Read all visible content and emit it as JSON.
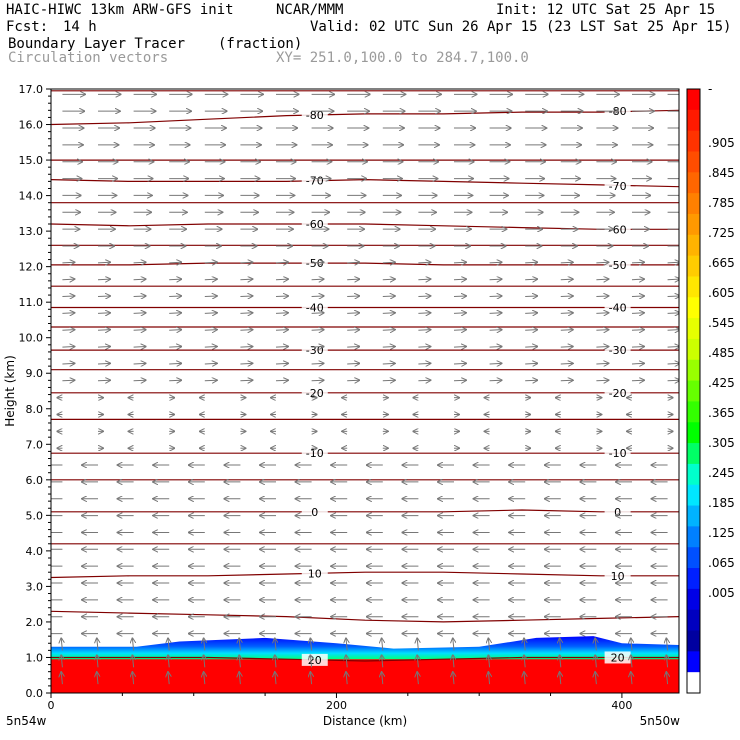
{
  "header": {
    "model": "HAIC-HIWC 13km ARW-GFS init",
    "org": "NCAR/MMM",
    "init": "Init: 12 UTC Sat 25 Apr 15",
    "fcst_label": "Fcst:",
    "fcst_value": "14 h",
    "valid": "Valid: 02 UTC Sun 26 Apr 15 (23 LST Sat 25 Apr 15)",
    "field_name": "Boundary Layer Tracer",
    "field_units": "(fraction)",
    "vectors_label": "Circulation vectors",
    "xy_range": "XY= 251.0,100.0 to 284.7,100.0"
  },
  "chart_data": {
    "type": "heatmap",
    "ylabel": "Height (km)",
    "xlabel": "Distance (km)",
    "xlim": [
      0,
      440
    ],
    "ylim": [
      0,
      17
    ],
    "y_ticks": [
      "0.0",
      "1.0",
      "2.0",
      "3.0",
      "4.0",
      "5.0",
      "6.0",
      "7.0",
      "8.0",
      "9.0",
      "10.0",
      "11.0",
      "12.0",
      "13.0",
      "14.0",
      "15.0",
      "16.0",
      "17.0"
    ],
    "y_tick_values": [
      0,
      1,
      2,
      3,
      4,
      5,
      6,
      7,
      8,
      9,
      10,
      11,
      12,
      13,
      14,
      15,
      16,
      17
    ],
    "x_ticks": [
      "0",
      "200",
      "400"
    ],
    "x_tick_values": [
      0,
      200,
      400
    ],
    "x_endpoint_labels": {
      "left": "5n54w",
      "right": "5n50w"
    },
    "temperature_contours": [
      {
        "label": "-80",
        "heights": [
          16.0,
          16.05,
          16.15,
          16.25,
          16.3,
          16.3,
          16.35,
          16.35,
          16.4
        ]
      },
      {
        "label": "-70",
        "heights": [
          14.45,
          14.4,
          14.4,
          14.4,
          14.45,
          14.4,
          14.35,
          14.3,
          14.25
        ]
      },
      {
        "label": "-60",
        "heights": [
          13.2,
          13.15,
          13.2,
          13.2,
          13.2,
          13.15,
          13.1,
          13.05,
          13.05
        ]
      },
      {
        "label": "-50",
        "heights": [
          12.05,
          12.05,
          12.1,
          12.1,
          12.1,
          12.05,
          12.05,
          12.05,
          12.05
        ]
      },
      {
        "label": "-40",
        "heights": [
          10.85,
          10.85,
          10.85,
          10.85,
          10.85,
          10.85,
          10.85,
          10.85,
          10.85
        ]
      },
      {
        "label": "-30",
        "heights": [
          9.65,
          9.65,
          9.65,
          9.65,
          9.65,
          9.65,
          9.65,
          9.65,
          9.65
        ]
      },
      {
        "label": "-20",
        "heights": [
          8.45,
          8.45,
          8.45,
          8.45,
          8.45,
          8.45,
          8.45,
          8.45,
          8.45
        ]
      },
      {
        "label": "-10",
        "heights": [
          6.75,
          6.75,
          6.75,
          6.75,
          6.75,
          6.75,
          6.75,
          6.75,
          6.75
        ]
      },
      {
        "label": "0",
        "heights": [
          5.1,
          5.1,
          5.1,
          5.1,
          5.1,
          5.1,
          5.15,
          5.1,
          5.1
        ]
      },
      {
        "label": "10",
        "heights": [
          3.25,
          3.3,
          3.3,
          3.35,
          3.4,
          3.4,
          3.35,
          3.3,
          3.3
        ]
      },
      {
        "label": "20",
        "heights": [
          1.0,
          1.0,
          1.0,
          0.95,
          0.9,
          0.95,
          1.0,
          1.0,
          1.0
        ]
      }
    ],
    "extra_contours": [
      {
        "heights": [
          16.95,
          16.95,
          16.95,
          16.95,
          16.95,
          16.95,
          16.95,
          16.95,
          16.95
        ]
      },
      {
        "heights": [
          15.0,
          15.0,
          15.0,
          15.0,
          15.0,
          15.0,
          15.0,
          15.0,
          15.0
        ]
      },
      {
        "heights": [
          13.8,
          13.8,
          13.8,
          13.8,
          13.8,
          13.8,
          13.8,
          13.8,
          13.8
        ]
      },
      {
        "heights": [
          12.6,
          12.6,
          12.6,
          12.6,
          12.6,
          12.6,
          12.6,
          12.6,
          12.6
        ]
      },
      {
        "heights": [
          11.45,
          11.45,
          11.45,
          11.45,
          11.45,
          11.45,
          11.45,
          11.45,
          11.45
        ]
      },
      {
        "heights": [
          10.3,
          10.3,
          10.3,
          10.3,
          10.3,
          10.3,
          10.3,
          10.3,
          10.3
        ]
      },
      {
        "heights": [
          9.1,
          9.1,
          9.1,
          9.1,
          9.1,
          9.1,
          9.1,
          9.1,
          9.1
        ]
      },
      {
        "heights": [
          7.7,
          7.7,
          7.7,
          7.7,
          7.7,
          7.7,
          7.7,
          7.7,
          7.7
        ]
      },
      {
        "heights": [
          6.0,
          6.0,
          6.0,
          6.0,
          6.0,
          6.0,
          6.0,
          6.0,
          6.0
        ]
      },
      {
        "heights": [
          4.2,
          4.2,
          4.2,
          4.2,
          4.2,
          4.2,
          4.2,
          4.2,
          4.2
        ]
      },
      {
        "heights": [
          2.3,
          2.25,
          2.2,
          2.15,
          2.05,
          2.0,
          2.05,
          2.1,
          2.15
        ]
      }
    ],
    "boundary_layer_top_km": {
      "x": [
        0,
        60,
        90,
        150,
        200,
        240,
        300,
        340,
        380,
        400,
        440
      ],
      "y": [
        1.3,
        1.3,
        1.45,
        1.55,
        1.4,
        1.25,
        1.3,
        1.55,
        1.6,
        1.4,
        1.35
      ]
    },
    "colorbar": {
      "labels": [
        "-",
        ".905",
        ".845",
        ".785",
        ".725",
        ".665",
        ".605",
        ".545",
        ".485",
        ".425",
        ".365",
        ".305",
        ".245",
        ".185",
        ".125",
        ".065",
        ".005"
      ],
      "colors": [
        "#ff0000",
        "#ff1a00",
        "#ff3300",
        "#ff4d00",
        "#ff6600",
        "#ff8000",
        "#ff9900",
        "#ffb300",
        "#ffcc00",
        "#ffe600",
        "#ffff00",
        "#e6ff00",
        "#ccff00",
        "#99ff00",
        "#66ff00",
        "#33ff00",
        "#00ff00",
        "#00ff66",
        "#00ffcc",
        "#00e6ff",
        "#00b3ff",
        "#0080ff",
        "#0050ff",
        "#0020ff",
        "#0000e6",
        "#0000c0",
        "#0000a0",
        "#0000ff",
        "#ffffff"
      ]
    },
    "vector_color": "#777777",
    "contour_color": "#800000"
  }
}
